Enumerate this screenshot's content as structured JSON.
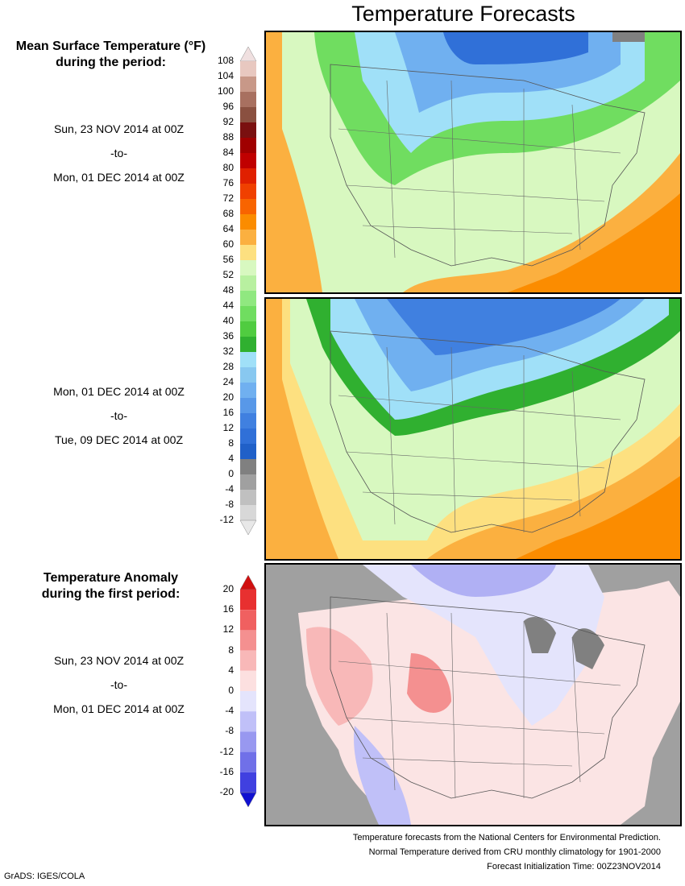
{
  "title": "Temperature Forecasts",
  "mean_temp": {
    "heading_line1": "Mean Surface Temperature (°F)",
    "heading_line2": "during the period:",
    "period1": {
      "start": "Sun, 23 NOV 2014 at 00Z",
      "sep": "-to-",
      "end": "Mon, 01 DEC 2014 at 00Z"
    },
    "period2": {
      "start": "Mon, 01 DEC 2014 at 00Z",
      "sep": "-to-",
      "end": "Tue, 09 DEC 2014 at 00Z"
    },
    "colorbar_labels": [
      "108",
      "104",
      "100",
      "96",
      "92",
      "88",
      "84",
      "80",
      "76",
      "72",
      "68",
      "64",
      "60",
      "56",
      "52",
      "48",
      "44",
      "40",
      "36",
      "32",
      "28",
      "24",
      "20",
      "16",
      "12",
      "8",
      "4",
      "0",
      "-4",
      "-8",
      "-12"
    ],
    "colorbar_colors": [
      "#e8c8c0",
      "#c89888",
      "#a87060",
      "#8a5040",
      "#7a1010",
      "#a00000",
      "#c00000",
      "#e02000",
      "#f04000",
      "#f86400",
      "#fb8c00",
      "#fbb040",
      "#fde080",
      "#d8f8c0",
      "#b8f0a0",
      "#90e880",
      "#70dd60",
      "#50cc40",
      "#30b030",
      "#a0e0f8",
      "#88c8f0",
      "#70b0f0",
      "#5898e8",
      "#4080e0",
      "#3070d8",
      "#2060c8",
      "#808080",
      "#a0a0a0",
      "#c0c0c0",
      "#d8d8d8"
    ]
  },
  "anomaly": {
    "heading_line1": "Temperature Anomaly",
    "heading_line2": "during the first period:",
    "period": {
      "start": "Sun, 23 NOV 2014 at 00Z",
      "sep": "-to-",
      "end": "Mon, 01 DEC 2014 at 00Z"
    },
    "colorbar_labels": [
      "20",
      "16",
      "12",
      "8",
      "4",
      "0",
      "-4",
      "-8",
      "-12",
      "-16",
      "-20"
    ],
    "colorbar_colors": [
      "#e83030",
      "#f06060",
      "#f49090",
      "#f8b8b8",
      "#fce0e0",
      "#e4e4fc",
      "#c0c0f8",
      "#9898f0",
      "#7070e8",
      "#4040e0"
    ]
  },
  "footer": {
    "line1": "Temperature forecasts from the National Centers for Environmental Prediction.",
    "line2": "Normal Temperature derived from CRU monthly climatology for 1901-2000",
    "line3": "Forecast Initialization Time: 00Z23NOV2014"
  },
  "credit": "GrADS: IGES/COLA"
}
